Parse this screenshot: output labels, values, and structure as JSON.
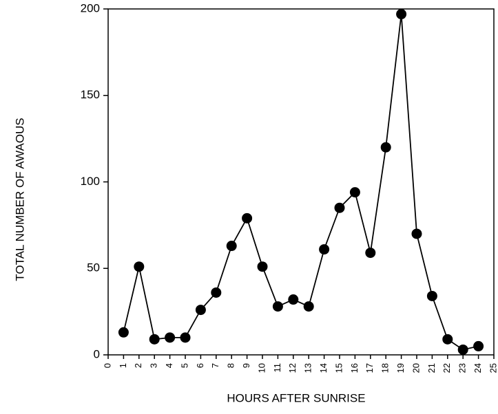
{
  "chart_data": {
    "type": "line",
    "x_label": "HOURS AFTER SUNRISE",
    "y_label": "TOTAL NUMBER OF AWAOUS",
    "x": [
      1,
      2,
      3,
      4,
      5,
      6,
      7,
      8,
      9,
      10,
      11,
      12,
      13,
      14,
      15,
      16,
      17,
      18,
      19,
      20,
      21,
      22,
      23,
      24
    ],
    "values": [
      13,
      51,
      9,
      10,
      10,
      26,
      36,
      63,
      79,
      51,
      28,
      32,
      28,
      61,
      85,
      94,
      59,
      120,
      197,
      70,
      34,
      9,
      3,
      5
    ],
    "color": "#000000",
    "xlim": [
      0,
      25
    ],
    "xticks": [
      0,
      1,
      2,
      3,
      4,
      5,
      6,
      7,
      8,
      9,
      10,
      11,
      12,
      13,
      14,
      15,
      16,
      17,
      18,
      19,
      20,
      21,
      22,
      23,
      24,
      25
    ],
    "ylim": [
      0,
      200
    ],
    "yticks": [
      0,
      50,
      100,
      150,
      200
    ],
    "grid": false
  }
}
